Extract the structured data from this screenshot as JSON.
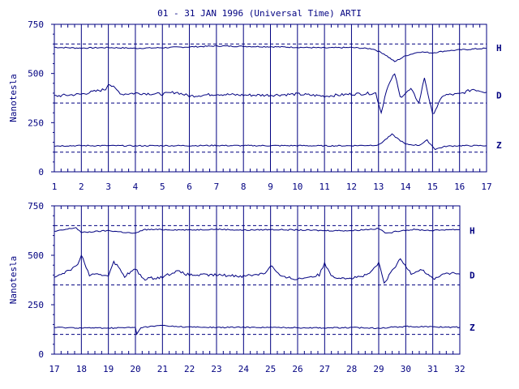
{
  "title": "01 - 31 JAN 1996 (Universal Time) ARTI",
  "colors": {
    "ink": "#000080",
    "trace": "#000080",
    "background": "#ffffff"
  },
  "chart_data": [
    {
      "type": "line",
      "panel": "top",
      "xlim": [
        1,
        17
      ],
      "ylim": [
        0,
        750
      ],
      "x_ticks": [
        "1",
        "2",
        "3",
        "4",
        "5",
        "6",
        "7",
        "8",
        "9",
        "10",
        "11",
        "12",
        "13",
        "14",
        "15",
        "16",
        "17"
      ],
      "y_ticks": [
        "0",
        "250",
        "500",
        "750"
      ],
      "ylabel": "Nanotesla",
      "grid": "vertical lines at each day",
      "reference_levels": [
        650,
        350,
        100
      ],
      "series": [
        {
          "name": "H",
          "level": 630,
          "points": [
            [
              1,
              633
            ],
            [
              2,
              629
            ],
            [
              3,
              632
            ],
            [
              4,
              628
            ],
            [
              5,
              631
            ],
            [
              6,
              635
            ],
            [
              7,
              640
            ],
            [
              8,
              638
            ],
            [
              9,
              636
            ],
            [
              10,
              633
            ],
            [
              11,
              630
            ],
            [
              12,
              632
            ],
            [
              12.8,
              625
            ],
            [
              13.2,
              600
            ],
            [
              13.6,
              560
            ],
            [
              14.0,
              590
            ],
            [
              14.5,
              610
            ],
            [
              15.0,
              605
            ],
            [
              15.5,
              615
            ],
            [
              16,
              620
            ],
            [
              17,
              628
            ]
          ]
        },
        {
          "name": "D",
          "level": 390,
          "points": [
            [
              1,
              385
            ],
            [
              2,
              395
            ],
            [
              2.9,
              420
            ],
            [
              3,
              450
            ],
            [
              3.5,
              395
            ],
            [
              4,
              400
            ],
            [
              5,
              395
            ],
            [
              5.5,
              405
            ],
            [
              6,
              385
            ],
            [
              7,
              395
            ],
            [
              8,
              390
            ],
            [
              9,
              390
            ],
            [
              10,
              395
            ],
            [
              11,
              385
            ],
            [
              12,
              395
            ],
            [
              12.9,
              400
            ],
            [
              13.1,
              300
            ],
            [
              13.3,
              420
            ],
            [
              13.6,
              500
            ],
            [
              13.8,
              380
            ],
            [
              14.2,
              420
            ],
            [
              14.5,
              350
            ],
            [
              14.7,
              480
            ],
            [
              15.0,
              290
            ],
            [
              15.4,
              390
            ],
            [
              16,
              395
            ],
            [
              16.5,
              420
            ],
            [
              17,
              405
            ]
          ]
        },
        {
          "name": "Z",
          "level": 135,
          "points": [
            [
              1,
              132
            ],
            [
              2,
              133
            ],
            [
              3,
              133
            ],
            [
              4,
              132
            ],
            [
              5,
              133
            ],
            [
              6,
              133
            ],
            [
              7,
              134
            ],
            [
              8,
              133
            ],
            [
              9,
              133
            ],
            [
              10,
              133
            ],
            [
              11,
              132
            ],
            [
              12,
              133
            ],
            [
              13,
              136
            ],
            [
              13.5,
              190
            ],
            [
              14,
              140
            ],
            [
              14.5,
              135
            ],
            [
              14.8,
              160
            ],
            [
              15.1,
              115
            ],
            [
              15.5,
              130
            ],
            [
              16,
              133
            ],
            [
              17,
              133
            ]
          ]
        }
      ]
    },
    {
      "type": "line",
      "panel": "bottom",
      "xlim": [
        17,
        32
      ],
      "ylim": [
        0,
        750
      ],
      "x_ticks": [
        "17",
        "18",
        "19",
        "20",
        "21",
        "22",
        "23",
        "24",
        "25",
        "26",
        "27",
        "28",
        "29",
        "30",
        "31",
        "32"
      ],
      "y_ticks": [
        "0",
        "250",
        "500",
        "750"
      ],
      "ylabel": "Nanotesla",
      "grid": "vertical lines at each day",
      "reference_levels": [
        650,
        350,
        100
      ],
      "series": [
        {
          "name": "H",
          "level": 625,
          "points": [
            [
              17,
              620
            ],
            [
              17.8,
              640
            ],
            [
              18,
              615
            ],
            [
              19,
              625
            ],
            [
              20,
              610
            ],
            [
              20.3,
              630
            ],
            [
              21,
              630
            ],
            [
              22,
              628
            ],
            [
              23,
              632
            ],
            [
              24,
              627
            ],
            [
              25,
              630
            ],
            [
              26,
              628
            ],
            [
              27,
              625
            ],
            [
              28,
              625
            ],
            [
              29,
              635
            ],
            [
              29.3,
              610
            ],
            [
              29.8,
              625
            ],
            [
              30.3,
              630
            ],
            [
              31,
              625
            ],
            [
              31.5,
              630
            ],
            [
              32,
              630
            ]
          ]
        },
        {
          "name": "D",
          "level": 400,
          "points": [
            [
              17,
              390
            ],
            [
              17.8,
              440
            ],
            [
              18,
              500
            ],
            [
              18.3,
              400
            ],
            [
              19,
              400
            ],
            [
              19.2,
              470
            ],
            [
              19.6,
              395
            ],
            [
              20,
              430
            ],
            [
              20.3,
              380
            ],
            [
              21,
              390
            ],
            [
              21.5,
              420
            ],
            [
              22,
              400
            ],
            [
              23,
              400
            ],
            [
              24,
              395
            ],
            [
              24.8,
              410
            ],
            [
              25,
              450
            ],
            [
              25.4,
              390
            ],
            [
              26,
              380
            ],
            [
              26.8,
              400
            ],
            [
              27,
              460
            ],
            [
              27.3,
              390
            ],
            [
              28,
              385
            ],
            [
              28.6,
              400
            ],
            [
              29,
              460
            ],
            [
              29.2,
              360
            ],
            [
              29.5,
              420
            ],
            [
              29.8,
              480
            ],
            [
              30.2,
              410
            ],
            [
              30.6,
              430
            ],
            [
              31,
              380
            ],
            [
              31.5,
              410
            ],
            [
              32,
              405
            ]
          ]
        },
        {
          "name": "Z",
          "level": 135,
          "points": [
            [
              17,
              135
            ],
            [
              18,
              133
            ],
            [
              19,
              132
            ],
            [
              20,
              135
            ],
            [
              20.05,
              100
            ],
            [
              20.2,
              135
            ],
            [
              21,
              145
            ],
            [
              21.5,
              140
            ],
            [
              22,
              137
            ],
            [
              23,
              135
            ],
            [
              24,
              136
            ],
            [
              25,
              135
            ],
            [
              26,
              134
            ],
            [
              27,
              133
            ],
            [
              28,
              134
            ],
            [
              29,
              132
            ],
            [
              30,
              140
            ],
            [
              31,
              138
            ],
            [
              32,
              136
            ]
          ]
        }
      ]
    }
  ]
}
